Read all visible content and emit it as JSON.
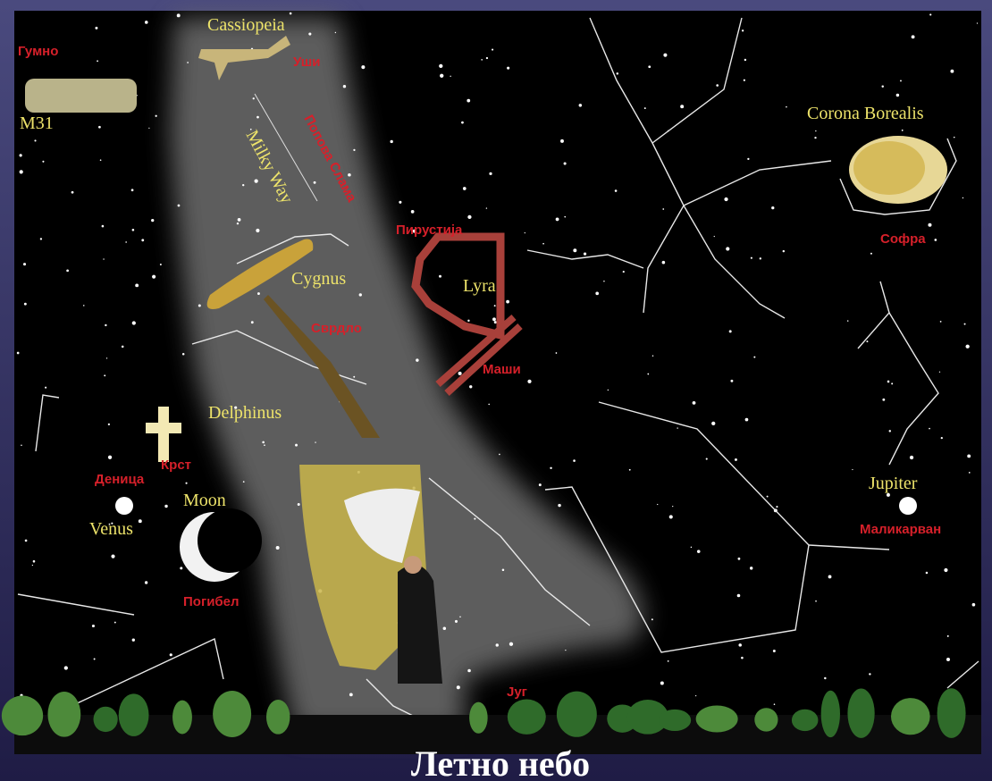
{
  "header": {
    "title": "Летно небо"
  },
  "labels": {
    "gumno": "Гумно",
    "m31": "M31",
    "cassiopeia": "Cassiopeia",
    "ushi": "Уши",
    "milky_way": "Milky Way",
    "milky_way_folk": "Попова Слама",
    "cygnus": "Cygnus",
    "svrdlo": "Сврдло",
    "pirustija": "Пирустија",
    "lyra": "Lyra",
    "mashi": "Маши",
    "corona_borealis": "Corona Borealis",
    "sofra": "Софра",
    "delphinus": "Delphinus",
    "krst": "Крст",
    "denica": "Деница",
    "venus": "Venus",
    "moon": "Moon",
    "pogibel": "Погибел",
    "jupiter": "Jupiter",
    "malikarvan": "Маликарван",
    "jug": "Југ"
  }
}
